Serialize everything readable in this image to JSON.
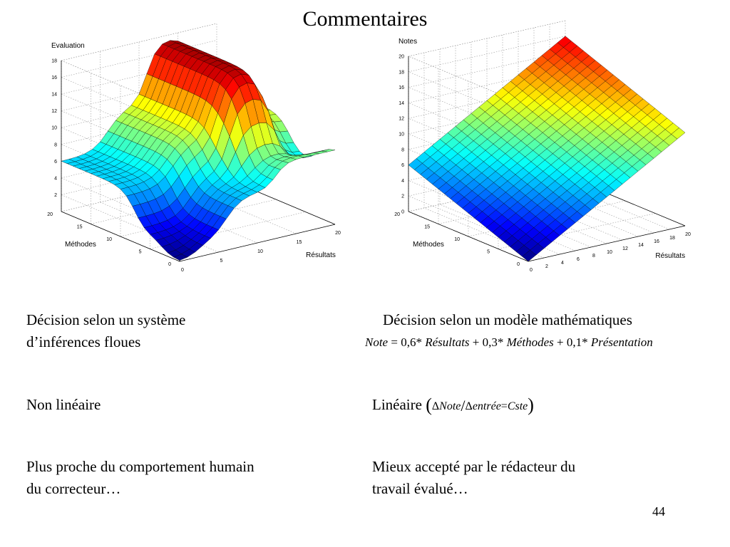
{
  "slide": {
    "title": "Commentaires",
    "page_number": "44"
  },
  "left": {
    "heading_line1": "Décision selon un système",
    "heading_line2": "d’inférences floues",
    "nonlinear": "Non linéaire",
    "humain_line1": "Plus proche du comportement humain",
    "humain_line2": "du correcteur…"
  },
  "right": {
    "heading": "Décision selon un modèle mathématiques",
    "formula": {
      "lhs": "Note",
      "eq": "=",
      "c1": "0,6",
      "star": "*",
      "t1": "Résultats",
      "plus": "+",
      "c2": "0,3",
      "t2": "Méthodes",
      "c3": "0,1",
      "t3": "Présentation"
    },
    "linear": "Linéaire",
    "linear_formula": {
      "delta": "Δ",
      "num": "Note",
      "slash": "/",
      "den": "entrée",
      "eq": "=",
      "rhs": "Cste"
    },
    "accepte_line1": "Mieux accepté par le rédacteur du",
    "accepte_line2": "travail évalué…"
  },
  "chart_data": [
    {
      "type": "surface",
      "zlabel": "Evaluation",
      "xlabel": "Résultats",
      "ylabel": "Méthodes",
      "xlim": [
        0,
        20
      ],
      "ylim": [
        0,
        20
      ],
      "zlim": [
        0,
        18
      ],
      "x_ticks": [
        "0",
        "5",
        "10",
        "15",
        "20"
      ],
      "y_ticks": [
        "0",
        "5",
        "10",
        "15",
        "20"
      ],
      "z_ticks": [
        "2",
        "4",
        "6",
        "8",
        "10",
        "12",
        "14",
        "16",
        "18"
      ],
      "colormap": "jet",
      "grid": true,
      "description_values": {
        "min_at_x0_y0": 0,
        "value_at_x0_y20": 6.5,
        "value_at_x20_y20": 11,
        "plateau_max": 18
      }
    },
    {
      "type": "surface",
      "zlabel": "Notes",
      "xlabel": "Résultats",
      "ylabel": "Méthodes",
      "xlim": [
        0,
        20
      ],
      "ylim": [
        0,
        20
      ],
      "zlim": [
        0,
        20
      ],
      "x_ticks": [
        "0",
        "2",
        "4",
        "6",
        "8",
        "10",
        "12",
        "14",
        "16",
        "18",
        "20"
      ],
      "y_ticks": [
        "0",
        "5",
        "10",
        "15",
        "20"
      ],
      "z_ticks": [
        "0",
        "2",
        "4",
        "6",
        "8",
        "10",
        "12",
        "14",
        "16",
        "18",
        "20"
      ],
      "colormap": "jet",
      "grid": true,
      "formula_coefficients": {
        "x": 0.6,
        "y": 0.3
      },
      "description_values": {
        "value_at_x0_y0": 0,
        "value_at_x20_y20": 18
      }
    }
  ]
}
